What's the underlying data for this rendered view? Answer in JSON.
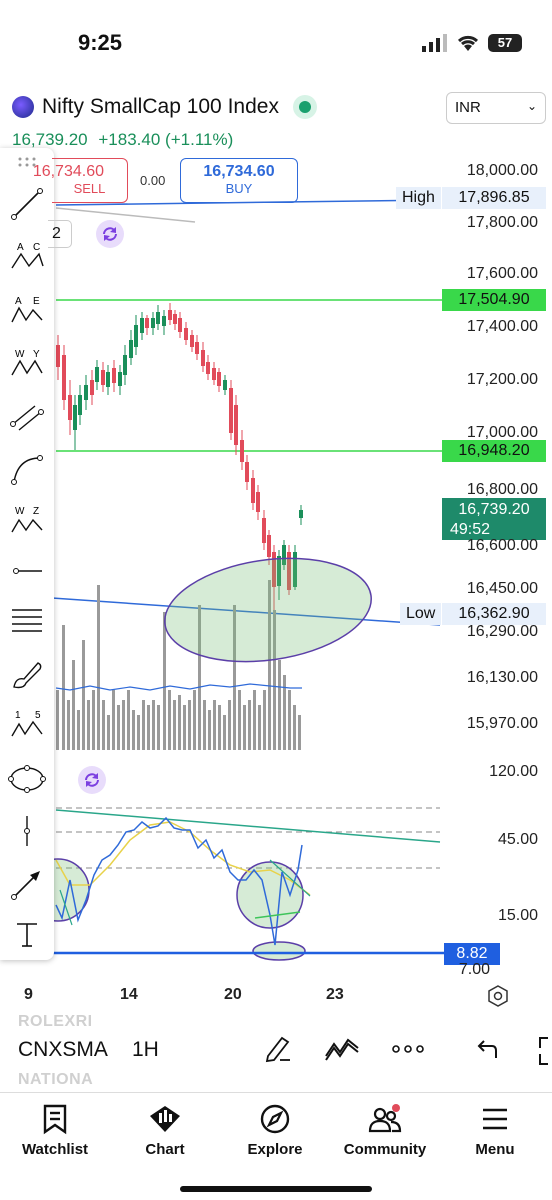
{
  "status_bar": {
    "time": "9:25",
    "battery": "57"
  },
  "header": {
    "symbol_name": "Nifty SmallCap 100 Index",
    "currency": "INR",
    "last_price": "16,739.20",
    "change": "+183.40",
    "change_pct": "(+1.11%)"
  },
  "trade": {
    "sell_price": "16,734.60",
    "sell_label": "SELL",
    "spread": "0.00",
    "buy_price": "16,734.60",
    "buy_label": "BUY",
    "interval_chip": "2"
  },
  "toolbar": {
    "tools": [
      "trend-line",
      "abcd-pattern",
      "abcde-pattern",
      "wxy-pattern",
      "parallel-channel",
      "curve",
      "wxyz-pattern",
      "horizontal-line",
      "fib-levels",
      "brush",
      "elliott-wave-12345",
      "ellipse",
      "vertical-line",
      "arrow",
      "text"
    ]
  },
  "price_axis": {
    "ticks": [
      "18,000.00",
      "17,800.00",
      "17,600.00",
      "17,400.00",
      "17,200.00",
      "17,000.00",
      "16,800.00",
      "16,600.00",
      "16,450.00",
      "16,290.00",
      "16,130.00",
      "15,970.00"
    ],
    "high_label": "High",
    "high_value": "17,896.85",
    "level_1": "17,504.90",
    "level_2": "16,948.20",
    "current_price": "16,739.20",
    "countdown": "49:52",
    "low_label": "Low",
    "low_value": "16,362.90"
  },
  "oscillator_axis": {
    "ticks": [
      "120.00",
      "45.00",
      "15.00",
      "7.00"
    ],
    "current_value": "8.82"
  },
  "date_axis": [
    "9",
    "14",
    "20",
    "23"
  ],
  "bottom_controls": {
    "ghost_top": "ROLEXRI",
    "ghost_bottom": "NATIONA",
    "ticker": "CNXSMA",
    "timeframe": "1H"
  },
  "tabs": [
    {
      "label": "Watchlist",
      "icon": "watchlist-icon"
    },
    {
      "label": "Chart",
      "icon": "chart-icon"
    },
    {
      "label": "Explore",
      "icon": "compass-icon"
    },
    {
      "label": "Community",
      "icon": "community-icon"
    },
    {
      "label": "Menu",
      "icon": "menu-icon"
    }
  ],
  "colors": {
    "up": "#1a8f5a",
    "down": "#e14b5a",
    "accent_blue": "#2f6ad9",
    "level_green": "#39d84a"
  }
}
